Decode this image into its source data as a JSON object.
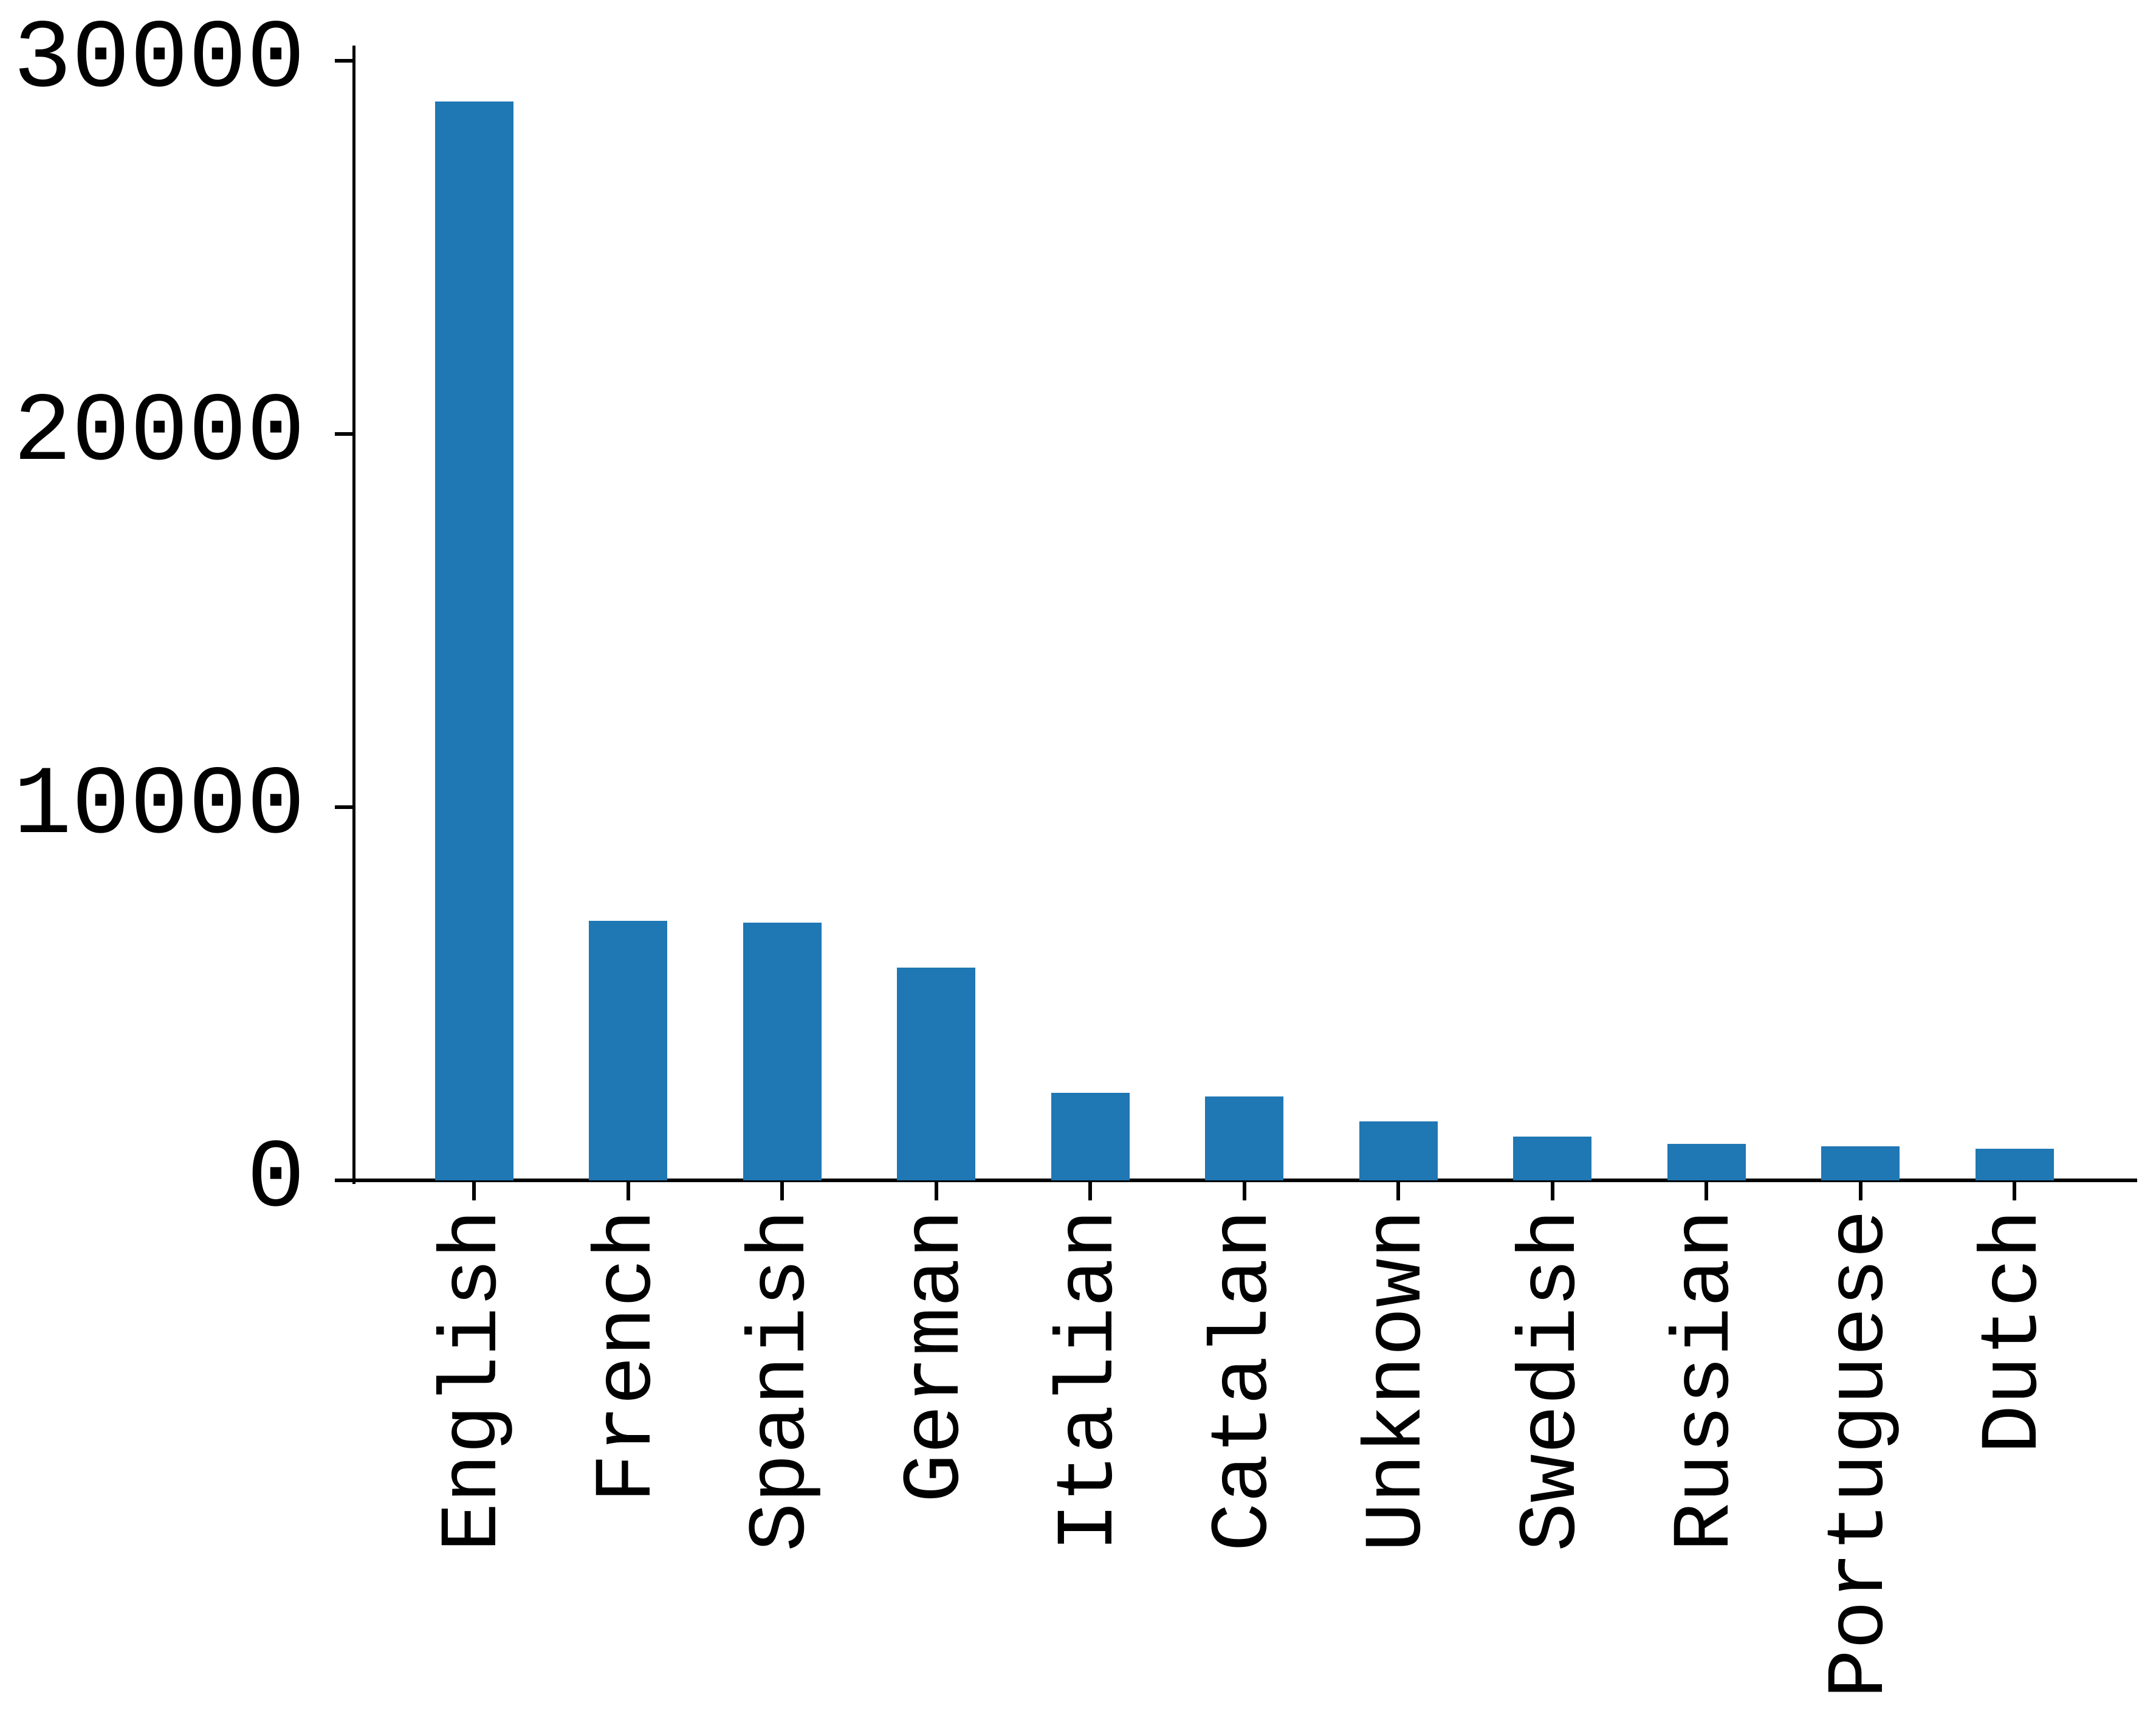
{
  "chart_data": {
    "type": "bar",
    "title": "",
    "xlabel": "",
    "ylabel": "",
    "categories": [
      "English",
      "French",
      "Spanish",
      "German",
      "Italian",
      "Catalan",
      "Unknown",
      "Swedish",
      "Russian",
      "Portuguese",
      "Dutch"
    ],
    "values": [
      28900,
      6950,
      6900,
      5700,
      2350,
      2250,
      1580,
      1170,
      980,
      910,
      850
    ],
    "ylim": [
      0,
      30400
    ],
    "yticks": [
      {
        "value": 0,
        "label": "0"
      },
      {
        "value": 10000,
        "label": "10000"
      },
      {
        "value": 20000,
        "label": "20000"
      },
      {
        "value": 30000,
        "label": "30000"
      }
    ],
    "grid": false,
    "legend": null,
    "bar_color": "#1f77b4",
    "axis_color": "#000000",
    "background_color": "#ffffff",
    "xlabel_rotation_deg": 90
  }
}
